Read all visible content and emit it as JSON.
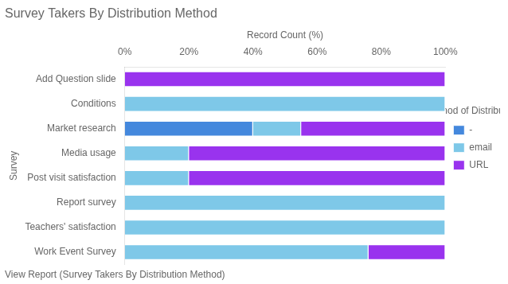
{
  "chart_data": {
    "type": "bar",
    "orientation": "horizontal",
    "stacked": true,
    "title": "Survey Takers By Distribution Method",
    "xlabel": "Record Count (%)",
    "ylabel": "Survey",
    "legend_title": "Method of Distribution",
    "legend": "right",
    "grid": false,
    "annotations": [
      "View Report (Survey Takers By Distribution Method)"
    ],
    "categories": [
      "Add Question slide",
      "Conditions",
      "Market research",
      "Media usage",
      "Post visit satisfaction",
      "Report survey",
      "Teachers' satisfaction",
      "Work Event Survey"
    ],
    "series": [
      {
        "name": "-",
        "color": "#4488DD",
        "values": [
          0,
          0,
          40,
          0,
          0,
          0,
          0,
          0
        ]
      },
      {
        "name": "email",
        "color": "#7EC8E8",
        "values": [
          0,
          100,
          15,
          20,
          20,
          100,
          100,
          76
        ]
      },
      {
        "name": "URL",
        "color": "#9933EE",
        "values": [
          100,
          0,
          45,
          80,
          80,
          0,
          0,
          24
        ]
      }
    ],
    "xlim": [
      0,
      100
    ],
    "xticks": [
      {
        "value": 0,
        "label": "0%"
      },
      {
        "value": 20,
        "label": "20%"
      },
      {
        "value": 40,
        "label": "40%"
      },
      {
        "value": 60,
        "label": "60%"
      },
      {
        "value": 80,
        "label": "80%"
      },
      {
        "value": 100,
        "label": "100%"
      }
    ]
  }
}
